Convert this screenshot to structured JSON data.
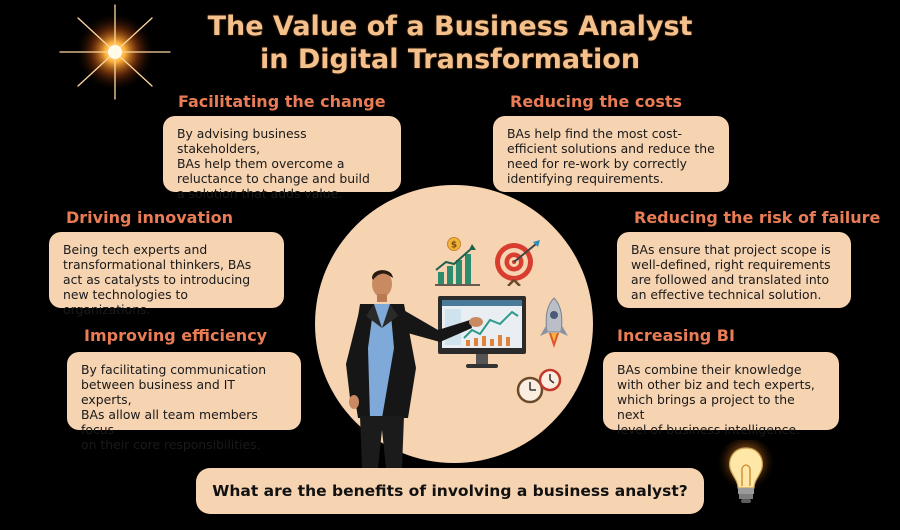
{
  "title": {
    "line1": "The Value of a Business Analyst",
    "line2": "in Digital Transformation"
  },
  "sections": {
    "facilitating": {
      "heading": "Facilitating the change",
      "lines": [
        "By advising business stakeholders,",
        "BAs help them overcome a",
        "reluctance to change and build",
        "a solution that adds value."
      ]
    },
    "reducing_costs": {
      "heading": "Reducing the costs",
      "lines": [
        "BAs help find the most cost-",
        "efficient solutions and reduce the",
        "need for re-work by correctly",
        "identifying requirements."
      ]
    },
    "driving_innovation": {
      "heading": "Driving innovation",
      "lines": [
        "Being tech experts and",
        "transformational thinkers, BAs",
        "act as catalysts to introducing",
        "new technologies to organizations."
      ]
    },
    "reducing_risk": {
      "heading": "Reducing the risk of failure",
      "lines": [
        "BAs ensure that project scope is",
        "well-defined, right requirements",
        "are followed and translated into",
        "an effective technical solution."
      ]
    },
    "improving_efficiency": {
      "heading": "Improving efficiency",
      "lines": [
        "By facilitating communication",
        "between business and IT experts,",
        "BAs allow all team members focus",
        "on their core responsibilities."
      ]
    },
    "increasing_bi": {
      "heading": "Increasing BI",
      "lines": [
        "BAs combine their knowledge",
        "with other biz and tech experts,",
        "which brings a project to the next",
        "level of business intelligence."
      ]
    }
  },
  "question": "What are the benefits of involving a business analyst?",
  "icons": [
    "sparkle-icon",
    "growth-chart-icon",
    "target-icon",
    "rocket-icon",
    "clocks-icon",
    "monitor-icon",
    "lightbulb-icon",
    "business-analyst-figure"
  ],
  "colors": {
    "background": "#000000",
    "title": "#f4c08c",
    "heading": "#e97c55",
    "box": "#f6d3b1",
    "text": "#1a1a1a"
  }
}
